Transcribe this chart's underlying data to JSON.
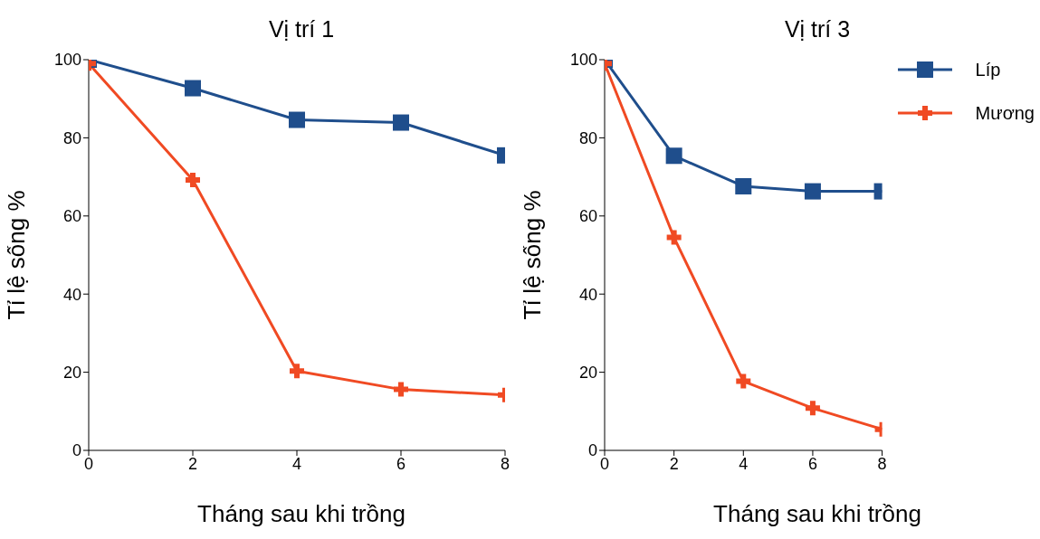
{
  "chart_data": [
    {
      "type": "line",
      "title": "Vị trí 1",
      "xlabel": "Tháng sau khi trồng",
      "ylabel": "Tỉ lệ sống %",
      "x": [
        0,
        2,
        4,
        6,
        8
      ],
      "xlim": [
        0,
        8
      ],
      "xticks": [
        0,
        2,
        4,
        6,
        8
      ],
      "ylim": [
        0,
        100
      ],
      "yticks": [
        0,
        20,
        40,
        60,
        80,
        100
      ],
      "grid": false,
      "legend": false,
      "series": [
        {
          "color": "#1f4e8c",
          "marker": "square",
          "values": [
            100,
            92.7,
            84.6,
            83.9,
            75.5
          ]
        },
        {
          "color": "#f04a23",
          "marker": "cross",
          "values": [
            99,
            69.2,
            20.3,
            15.6,
            14.2
          ]
        }
      ]
    },
    {
      "type": "line",
      "title": "Vị trí 3",
      "xlabel": "Tháng sau khi trồng",
      "ylabel": "Tỉ lệ sống %",
      "x": [
        0,
        2,
        4,
        6,
        8
      ],
      "xlim": [
        0,
        8
      ],
      "xticks": [
        0,
        2,
        4,
        6,
        8
      ],
      "ylim": [
        0,
        100
      ],
      "yticks": [
        0,
        20,
        40,
        60,
        80,
        100
      ],
      "grid": false,
      "legend": "top right",
      "series": [
        {
          "name": "Líp",
          "color": "#1f4e8c",
          "marker": "square",
          "values": [
            100,
            75.4,
            67.6,
            66.3,
            66.3
          ]
        },
        {
          "name": "Mương",
          "color": "#f04a23",
          "marker": "cross",
          "values": [
            99,
            54.5,
            17.7,
            10.8,
            5.4
          ]
        }
      ]
    }
  ]
}
